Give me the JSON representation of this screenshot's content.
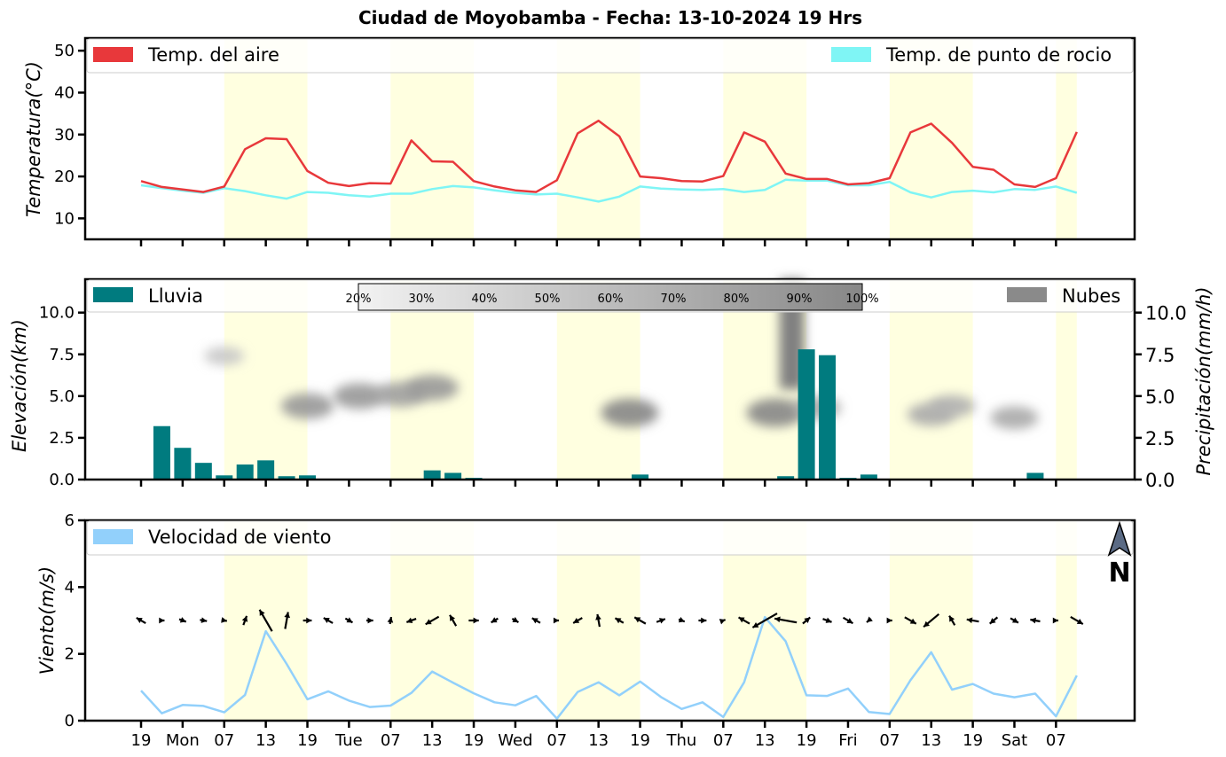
{
  "title": "Ciudad de Moyobamba   -   Fecha: 13-10-2024 19 Hrs",
  "colors": {
    "air": "#e8383b",
    "dew": "#7ff5f5",
    "rain": "#007b7f",
    "cloud": "#8a8a8a",
    "wind": "#92d0fb",
    "day_band": "#ffffe0"
  },
  "x_ticks": [
    "19",
    "Mon",
    "07",
    "13",
    "19",
    "Tue",
    "07",
    "13",
    "19",
    "Wed",
    "07",
    "13",
    "19",
    "Thu",
    "07",
    "13",
    "19",
    "Fri",
    "07",
    "13",
    "19",
    "Sat",
    "07"
  ],
  "chart_data": [
    {
      "type": "line",
      "ylabel": "Temperatura(°C)",
      "ylim": [
        5,
        53
      ],
      "yticks": [
        10,
        20,
        30,
        40,
        50
      ],
      "legend": {
        "left": "Temp. del aire",
        "right": "Temp. de punto de rocio"
      },
      "series": [
        {
          "name": "Temp. del aire",
          "values": [
            18.9,
            17.5,
            16.9,
            16.3,
            17.6,
            26.5,
            29.1,
            28.9,
            21.3,
            18.5,
            17.7,
            18.4,
            18.3,
            28.6,
            23.6,
            23.5,
            18.9,
            17.6,
            16.7,
            16.3,
            19.1,
            30.3,
            33.3,
            29.6,
            20.0,
            19.6,
            18.9,
            18.8,
            20.1,
            30.5,
            28.3,
            20.7,
            19.4,
            19.4,
            18.1,
            18.4,
            19.6,
            30.5,
            32.6,
            28.0,
            22.3,
            21.6,
            18.1,
            17.5,
            19.6,
            30.6
          ]
        },
        {
          "name": "Temp. de punto de rocio",
          "values": [
            17.9,
            17.2,
            16.6,
            16.1,
            17.2,
            16.5,
            15.5,
            14.7,
            16.3,
            16.1,
            15.5,
            15.2,
            15.9,
            15.9,
            17.0,
            17.7,
            17.4,
            16.7,
            16.1,
            15.7,
            15.9,
            15.0,
            14.0,
            15.2,
            17.6,
            17.1,
            16.9,
            16.8,
            17.0,
            16.3,
            16.8,
            19.2,
            19.0,
            19.0,
            17.9,
            17.9,
            18.7,
            16.2,
            15.0,
            16.3,
            16.6,
            16.2,
            17.0,
            16.8,
            17.6,
            16.1
          ]
        }
      ]
    },
    {
      "type": "bar",
      "ylabel": "Elevación(km)",
      "y2label": "Precipitación(mm/h)",
      "ylim": [
        0,
        12
      ],
      "yticks": [
        0.0,
        2.5,
        5.0,
        7.5,
        10.0
      ],
      "legend": {
        "left": "Lluvia",
        "right": "Nubes"
      },
      "colorbar_labels": [
        "20%",
        "30%",
        "40%",
        "50%",
        "60%",
        "70%",
        "80%",
        "90%",
        "100%"
      ],
      "series": [
        {
          "name": "Lluvia",
          "values": [
            0,
            3.2,
            1.9,
            1.0,
            0.25,
            0.9,
            1.15,
            0.2,
            0.25,
            0,
            0,
            0,
            0.05,
            0.05,
            0.55,
            0.4,
            0.1,
            0,
            0,
            0,
            0,
            0,
            0,
            0,
            0.3,
            0,
            0,
            0.05,
            0,
            0,
            0,
            0.2,
            7.8,
            7.45,
            0.1,
            0.3,
            0,
            0,
            0,
            0,
            0,
            0,
            0,
            0.4,
            0,
            0
          ]
        }
      ],
      "clouds": [
        {
          "x": 4,
          "z": 7.4,
          "intensity": 0.25
        },
        {
          "x": 8,
          "z": 4.4,
          "intensity": 0.65
        },
        {
          "x": 10.5,
          "z": 5.0,
          "intensity": 0.65
        },
        {
          "x": 12.5,
          "z": 5.1,
          "intensity": 0.6
        },
        {
          "x": 14,
          "z": 5.5,
          "intensity": 0.65
        },
        {
          "x": 23.5,
          "z": 4.0,
          "intensity": 0.8
        },
        {
          "x": 30.5,
          "z": 4.0,
          "intensity": 0.8
        },
        {
          "x": 31.3,
          "z": 10.5,
          "intensity": 0.85
        },
        {
          "x": 32.5,
          "z": 4.3,
          "intensity": 0.5
        },
        {
          "x": 38,
          "z": 3.9,
          "intensity": 0.5
        },
        {
          "x": 39,
          "z": 4.4,
          "intensity": 0.45
        },
        {
          "x": 42,
          "z": 3.7,
          "intensity": 0.5
        }
      ]
    },
    {
      "type": "line",
      "ylabel": "Viento(m/s)",
      "ylim": [
        0,
        6
      ],
      "yticks": [
        0,
        2,
        4,
        6
      ],
      "legend": {
        "left": "Velocidad de viento"
      },
      "compass": "N",
      "series": [
        {
          "name": "Velocidad de viento",
          "values": [
            0.9,
            0.22,
            0.47,
            0.44,
            0.25,
            0.77,
            2.68,
            1.7,
            0.64,
            0.88,
            0.6,
            0.41,
            0.45,
            0.83,
            1.47,
            1.14,
            0.82,
            0.55,
            0.46,
            0.74,
            0.06,
            0.86,
            1.15,
            0.76,
            1.17,
            0.71,
            0.35,
            0.55,
            0.11,
            1.15,
            3.1,
            2.38,
            0.76,
            0.74,
            0.96,
            0.26,
            0.2,
            1.21,
            2.05,
            0.93,
            1.1,
            0.81,
            0.7,
            0.81,
            0.13,
            1.35
          ]
        }
      ],
      "wind_dir_deg": [
        300,
        90,
        110,
        100,
        100,
        20,
        330,
        10,
        90,
        300,
        120,
        90,
        10,
        250,
        240,
        330,
        90,
        240,
        120,
        300,
        90,
        240,
        350,
        300,
        300,
        70,
        110,
        90,
        70,
        300,
        240,
        280,
        50,
        110,
        120,
        230,
        90,
        120,
        230,
        330,
        280,
        230,
        120,
        280,
        90,
        120
      ]
    }
  ]
}
